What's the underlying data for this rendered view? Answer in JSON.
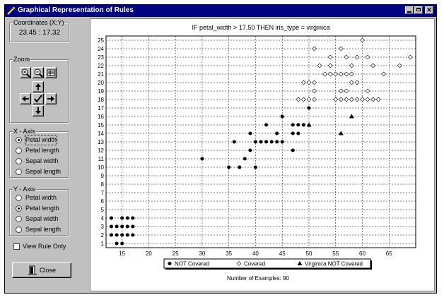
{
  "window": {
    "title": "Graphical Representation of Rules"
  },
  "left_panel": {
    "coordinates": {
      "label": "Coordinates (X;Y)",
      "value": "23.45 : 17.32"
    },
    "zoom": {
      "label": "Zoom"
    },
    "x_axis": {
      "label": "X - Axis",
      "options": [
        "Petal width",
        "Petal length",
        "Sepal width",
        "Sepal length"
      ],
      "selected_index": 0
    },
    "y_axis": {
      "label": "Y - Axis",
      "options": [
        "Petal width",
        "Petal length",
        "Sepal width",
        "Sepal length"
      ],
      "selected_index": 1
    },
    "view_rule_only": {
      "label": "View Rule Only",
      "checked": false
    },
    "close_button": {
      "label": "Close"
    }
  },
  "chart_data": {
    "type": "scatter",
    "title": "IF petal_width > 17.50 THEN iris_type = virginica",
    "xlim": [
      12,
      70
    ],
    "ylim": [
      0.5,
      25.5
    ],
    "x_ticks": [
      15,
      20,
      25,
      30,
      35,
      40,
      45,
      50,
      55,
      60,
      65
    ],
    "y_ticks": [
      1,
      2,
      3,
      4,
      5,
      6,
      7,
      8,
      9,
      10,
      11,
      12,
      13,
      14,
      15,
      16,
      17,
      18,
      19,
      20,
      21,
      22,
      23,
      24,
      25
    ],
    "grid": true,
    "legend_position": "bottom",
    "series": [
      {
        "name": "NOT Covered",
        "marker": "filled-circle",
        "points": [
          [
            14,
            1
          ],
          [
            15,
            1
          ],
          [
            13,
            2
          ],
          [
            14,
            2
          ],
          [
            15,
            2
          ],
          [
            16,
            2
          ],
          [
            17,
            2
          ],
          [
            13,
            3
          ],
          [
            14,
            3
          ],
          [
            15,
            3
          ],
          [
            16,
            3
          ],
          [
            17,
            3
          ],
          [
            13,
            4
          ],
          [
            15,
            4
          ],
          [
            16,
            4
          ],
          [
            17,
            4
          ],
          [
            30,
            11
          ],
          [
            35,
            10
          ],
          [
            37,
            10
          ],
          [
            40,
            10
          ],
          [
            36,
            13
          ],
          [
            38,
            11
          ],
          [
            39,
            12
          ],
          [
            39,
            14
          ],
          [
            40,
            13
          ],
          [
            41,
            13
          ],
          [
            42,
            13
          ],
          [
            43,
            13
          ],
          [
            44,
            13
          ],
          [
            45,
            13
          ],
          [
            42,
            15
          ],
          [
            44,
            14
          ],
          [
            45,
            16
          ],
          [
            47,
            12
          ],
          [
            47,
            14
          ],
          [
            48,
            14
          ],
          [
            47,
            15
          ],
          [
            48,
            15
          ],
          [
            49,
            15
          ],
          [
            50,
            17
          ]
        ]
      },
      {
        "name": "Covered",
        "marker": "open-diamond",
        "points": [
          [
            48,
            18
          ],
          [
            49,
            18
          ],
          [
            50,
            18
          ],
          [
            51,
            18
          ],
          [
            49,
            20
          ],
          [
            50,
            20
          ],
          [
            51,
            20
          ],
          [
            51,
            19
          ],
          [
            52,
            22
          ],
          [
            53,
            21
          ],
          [
            54,
            21
          ],
          [
            54,
            22
          ],
          [
            55,
            21
          ],
          [
            56,
            21
          ],
          [
            57,
            21
          ],
          [
            58,
            21
          ],
          [
            55,
            18
          ],
          [
            56,
            18
          ],
          [
            57,
            18
          ],
          [
            58,
            18
          ],
          [
            59,
            18
          ],
          [
            60,
            18
          ],
          [
            61,
            18
          ],
          [
            62,
            18
          ],
          [
            63,
            18
          ],
          [
            56,
            19
          ],
          [
            57,
            19
          ],
          [
            58,
            20
          ],
          [
            59,
            20
          ],
          [
            61,
            19
          ],
          [
            56,
            24
          ],
          [
            57,
            23
          ],
          [
            58,
            22
          ],
          [
            59,
            23
          ],
          [
            60,
            25
          ],
          [
            61,
            23
          ],
          [
            62,
            22
          ],
          [
            64,
            21
          ],
          [
            67,
            22
          ],
          [
            69,
            23
          ],
          [
            51,
            24
          ],
          [
            54,
            23
          ]
        ]
      },
      {
        "name": "Virginica NOT Covered",
        "marker": "filled-triangle",
        "points": [
          [
            50,
            15
          ],
          [
            56,
            14
          ],
          [
            58,
            16
          ]
        ]
      }
    ],
    "footer_text": "Number of Examples: 90"
  }
}
